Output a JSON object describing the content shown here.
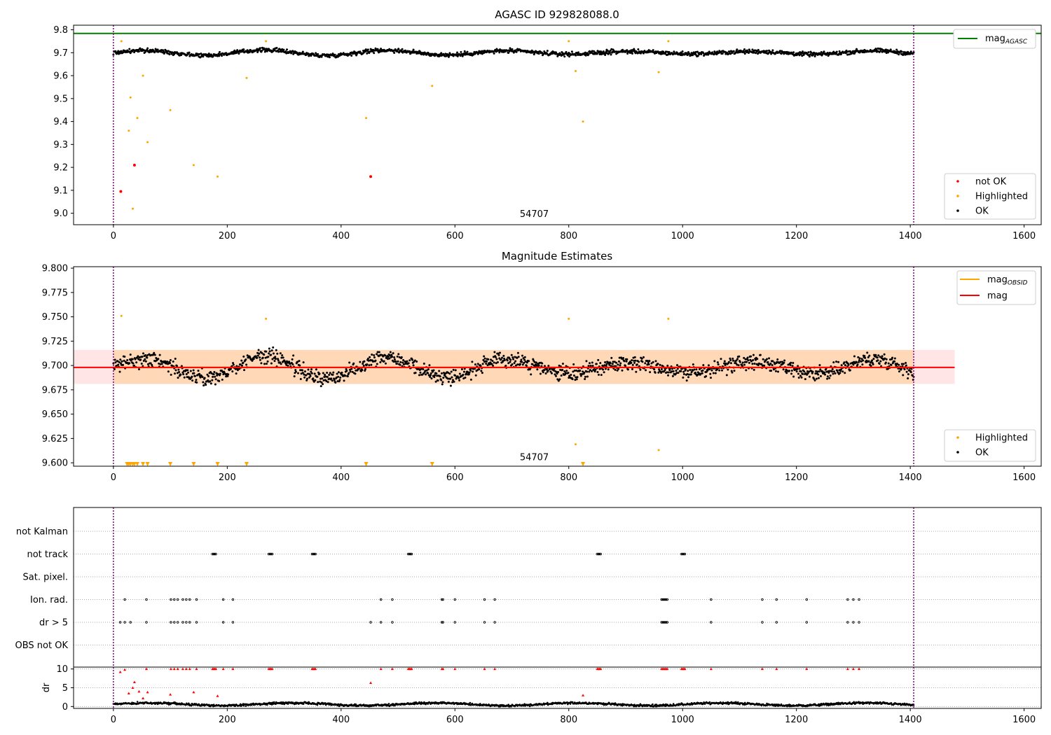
{
  "chart_data": [
    {
      "type": "scatter",
      "title": "AGASC ID 929828088.0",
      "xlim": [
        -70,
        1630
      ],
      "ylim": [
        8.95,
        9.82
      ],
      "xticks": [
        0,
        200,
        400,
        600,
        800,
        1000,
        1200,
        1400,
        1600
      ],
      "yticks": [
        9.0,
        9.1,
        9.2,
        9.3,
        9.4,
        9.5,
        9.6,
        9.7,
        9.8
      ],
      "ytick_labels": [
        "9.0",
        "9.1",
        "9.2",
        "9.3",
        "9.4",
        "9.5",
        "9.6",
        "9.7",
        "9.8"
      ],
      "vlines": [
        0,
        1406
      ],
      "vline_color": "#800080",
      "annotation": {
        "text": "54707",
        "x": 700,
        "y": 8.99
      },
      "hline": {
        "name": "mag",
        "subscript": "AGASC",
        "y": 9.784,
        "color": "#008000"
      },
      "ok_series": {
        "name": "OK",
        "color": "#000000",
        "x_range": [
          0,
          1406
        ],
        "baseline": 9.7,
        "amplitude": 0.012,
        "noise": 0.013
      },
      "highlighted": {
        "name": "Highlighted",
        "color": "#ffa500",
        "points": [
          [
            14,
            9.75
          ],
          [
            27,
            9.36
          ],
          [
            30,
            9.505
          ],
          [
            34,
            9.02
          ],
          [
            42,
            9.415
          ],
          [
            52,
            9.6
          ],
          [
            60,
            9.31
          ],
          [
            100,
            9.45
          ],
          [
            141,
            9.21
          ],
          [
            183,
            9.16
          ],
          [
            234,
            9.59
          ],
          [
            268,
            9.75
          ],
          [
            560,
            9.555
          ],
          [
            444,
            9.415
          ],
          [
            800,
            9.75
          ],
          [
            812,
            9.62
          ],
          [
            825,
            9.4
          ],
          [
            958,
            9.615
          ],
          [
            975,
            9.75
          ]
        ]
      },
      "not_ok": {
        "name": "not OK",
        "color": "#ff0000",
        "points": [
          [
            13,
            9.095
          ],
          [
            37,
            9.21
          ],
          [
            452,
            9.16
          ]
        ]
      },
      "legend_upper": [
        {
          "label": "mag",
          "sub": "AGASC",
          "color": "#008000"
        }
      ],
      "legend_lower": [
        {
          "label": "not OK",
          "color": "#ff0000"
        },
        {
          "label": "Highlighted",
          "color": "#ffa500"
        },
        {
          "label": "OK",
          "color": "#000000"
        }
      ]
    },
    {
      "type": "scatter",
      "title": "Magnitude Estimates",
      "xlim": [
        -70,
        1630
      ],
      "ylim": [
        9.5965,
        9.8015
      ],
      "xticks": [
        0,
        200,
        400,
        600,
        800,
        1000,
        1200,
        1400,
        1600
      ],
      "yticks": [
        9.6,
        9.625,
        9.65,
        9.675,
        9.7,
        9.725,
        9.75,
        9.775,
        9.8
      ],
      "ytick_labels": [
        "9.600",
        "9.625",
        "9.650",
        "9.675",
        "9.700",
        "9.725",
        "9.750",
        "9.775",
        "9.800"
      ],
      "vlines": [
        0,
        1406
      ],
      "annotation": {
        "text": "54707",
        "x": 700,
        "y": 9.604
      },
      "mag_line": {
        "name": "mag",
        "y": 9.698,
        "color": "#ff0000",
        "band": [
          9.681,
          9.716
        ],
        "band_x": [
          -70,
          1478
        ]
      },
      "obsid_line": {
        "name": "mag",
        "subscript": "OBSID",
        "y": 9.698,
        "color": "#ffa500",
        "band_x": [
          0,
          1406
        ]
      },
      "ok_series": {
        "name": "OK",
        "color": "#000000",
        "x_range": [
          0,
          1406
        ],
        "baseline": 9.698,
        "amplitude": 0.012,
        "noise": 0.011
      },
      "highlighted": {
        "name": "Highlighted",
        "color": "#ffa500",
        "points": [
          [
            14,
            9.751
          ],
          [
            268,
            9.748
          ],
          [
            800,
            9.748
          ],
          [
            812,
            9.619
          ],
          [
            958,
            9.613
          ],
          [
            975,
            9.748
          ]
        ]
      },
      "highlighted_clipped_x": [
        24,
        27,
        30,
        34,
        37,
        42,
        52,
        60,
        100,
        141,
        183,
        234,
        444,
        560,
        825
      ],
      "legend_upper": [
        {
          "label": "mag",
          "sub": "OBSID",
          "color": "#ffa500"
        },
        {
          "label": "mag",
          "sub": "",
          "color": "#ff0000"
        }
      ],
      "legend_lower": [
        {
          "label": "Highlighted",
          "color": "#ffa500"
        },
        {
          "label": "OK",
          "color": "#000000"
        }
      ]
    },
    {
      "type": "scatter",
      "xlim": [
        -70,
        1630
      ],
      "xticks": [
        0,
        200,
        400,
        600,
        800,
        1000,
        1200,
        1400,
        1600
      ],
      "flag_rows": [
        "not Kalman",
        "not track",
        "Sat. pixel.",
        "Ion. rad.",
        "dr > 5",
        "OBS not OK"
      ],
      "flags": {
        "not Kalman": [],
        "not track": [
          174,
          176,
          178,
          180,
          273,
          275,
          277,
          279,
          349,
          351,
          353,
          355,
          518,
          520,
          522,
          524,
          850,
          852,
          854,
          856,
          998,
          1000,
          1002,
          1004
        ],
        "Sat. pixel.": [],
        "Ion. rad.": [
          20,
          58,
          101,
          107,
          113,
          122,
          128,
          134,
          146,
          193,
          210,
          470,
          490,
          577,
          579,
          600,
          652,
          670,
          963,
          965,
          967,
          969,
          971,
          973,
          1050,
          1140,
          1165,
          1218,
          1290,
          1300,
          1310
        ],
        "dr > 5": [
          12,
          20,
          30,
          58,
          101,
          107,
          113,
          122,
          128,
          134,
          146,
          193,
          210,
          452,
          470,
          490,
          577,
          579,
          600,
          652,
          670,
          963,
          965,
          967,
          969,
          971,
          973,
          1050,
          1140,
          1165,
          1218,
          1290,
          1300,
          1310
        ],
        "OBS not OK": []
      },
      "dr": {
        "ylabel": "dr",
        "ylim": [
          -0.5,
          10.5
        ],
        "yticks": [
          0,
          5,
          10
        ],
        "ok_color": "#000000",
        "outlier_color": "#ff0000",
        "outliers": [
          [
            12,
            9.2
          ],
          [
            20,
            9.8
          ],
          [
            27,
            3.5
          ],
          [
            34,
            5
          ],
          [
            37,
            6.5
          ],
          [
            45,
            4
          ],
          [
            52,
            2.2
          ],
          [
            60,
            3.8
          ],
          [
            100,
            3.2
          ],
          [
            141,
            3.8
          ],
          [
            183,
            2.8
          ],
          [
            452,
            6.3
          ],
          [
            825,
            3
          ]
        ],
        "capped_x": [
          58,
          101,
          107,
          113,
          122,
          128,
          134,
          146,
          174,
          176,
          178,
          180,
          193,
          210,
          273,
          275,
          277,
          279,
          349,
          351,
          353,
          355,
          470,
          490,
          518,
          520,
          522,
          524,
          577,
          579,
          600,
          652,
          670,
          850,
          852,
          854,
          856,
          963,
          965,
          967,
          969,
          971,
          973,
          998,
          1000,
          1002,
          1004,
          1050,
          1140,
          1165,
          1218,
          1290,
          1300,
          1310
        ]
      }
    }
  ]
}
